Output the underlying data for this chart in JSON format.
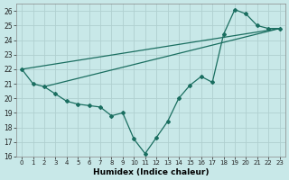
{
  "xlabel": "Humidex (Indice chaleur)",
  "background_color": "#c8e8e8",
  "grid_color": "#b0d0d0",
  "line_color": "#1a6e60",
  "xlim": [
    -0.5,
    23.5
  ],
  "ylim": [
    16,
    26.5
  ],
  "yticks": [
    16,
    17,
    18,
    19,
    20,
    21,
    22,
    23,
    24,
    25,
    26
  ],
  "xticks": [
    0,
    1,
    2,
    3,
    4,
    5,
    6,
    7,
    8,
    9,
    10,
    11,
    12,
    13,
    14,
    15,
    16,
    17,
    18,
    19,
    20,
    21,
    22,
    23
  ],
  "line1_x": [
    0,
    1,
    2,
    3,
    4,
    5,
    6,
    7,
    8,
    9,
    10,
    11,
    12,
    13,
    14,
    15,
    16,
    17,
    18,
    19,
    20,
    21,
    22,
    23
  ],
  "line1_y": [
    22.0,
    21.0,
    20.8,
    20.3,
    19.8,
    19.6,
    19.5,
    19.4,
    18.8,
    19.0,
    17.2,
    16.2,
    17.3,
    18.4,
    20.0,
    20.9,
    21.5,
    21.1,
    24.4,
    26.1,
    25.8,
    25.0,
    24.8,
    24.8
  ],
  "line2_x": [
    0,
    23
  ],
  "line2_y": [
    22.0,
    24.8
  ],
  "line3_x": [
    2,
    23
  ],
  "line3_y": [
    20.8,
    24.8
  ]
}
